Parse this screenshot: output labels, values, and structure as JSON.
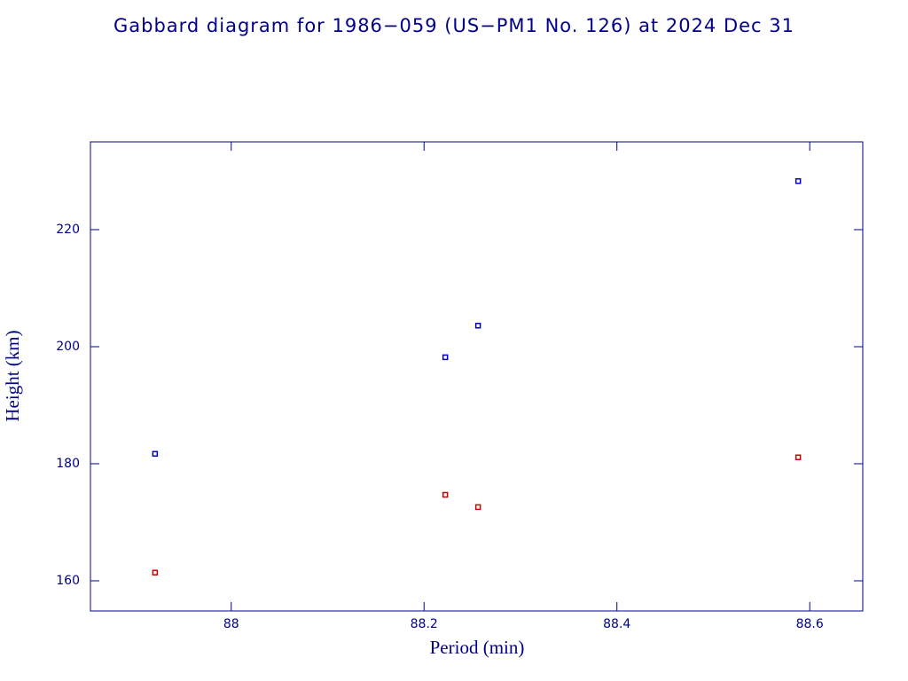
{
  "chart_data": {
    "type": "scatter",
    "title": "Gabbard diagram for 1986−059 (US−PM1 No. 126) at 2024 Dec 31",
    "x_label": "Period (min)",
    "y_label": "Height (km)",
    "xlim": [
      87.854,
      88.655
    ],
    "xticks": [
      88,
      {
        "value": 88.2,
        "label": "88.2"
      },
      {
        "value": 88.4,
        "label": "88.4"
      },
      {
        "value": 88.6,
        "label": "88.6"
      }
    ],
    "ylim": [
      154.85,
      235
    ],
    "yticks": [
      160,
      180,
      200,
      220
    ],
    "series": [
      {
        "color": "#0000cc",
        "x": [
          87.921,
          88.222,
          88.256,
          88.588
        ],
        "values": [
          181.7,
          198.2,
          203.6,
          228.3
        ]
      },
      {
        "color": "#cc0000",
        "x": [
          87.921,
          88.222,
          88.256,
          88.588
        ],
        "values": [
          161.4,
          174.7,
          172.6,
          181.1
        ]
      }
    ]
  }
}
